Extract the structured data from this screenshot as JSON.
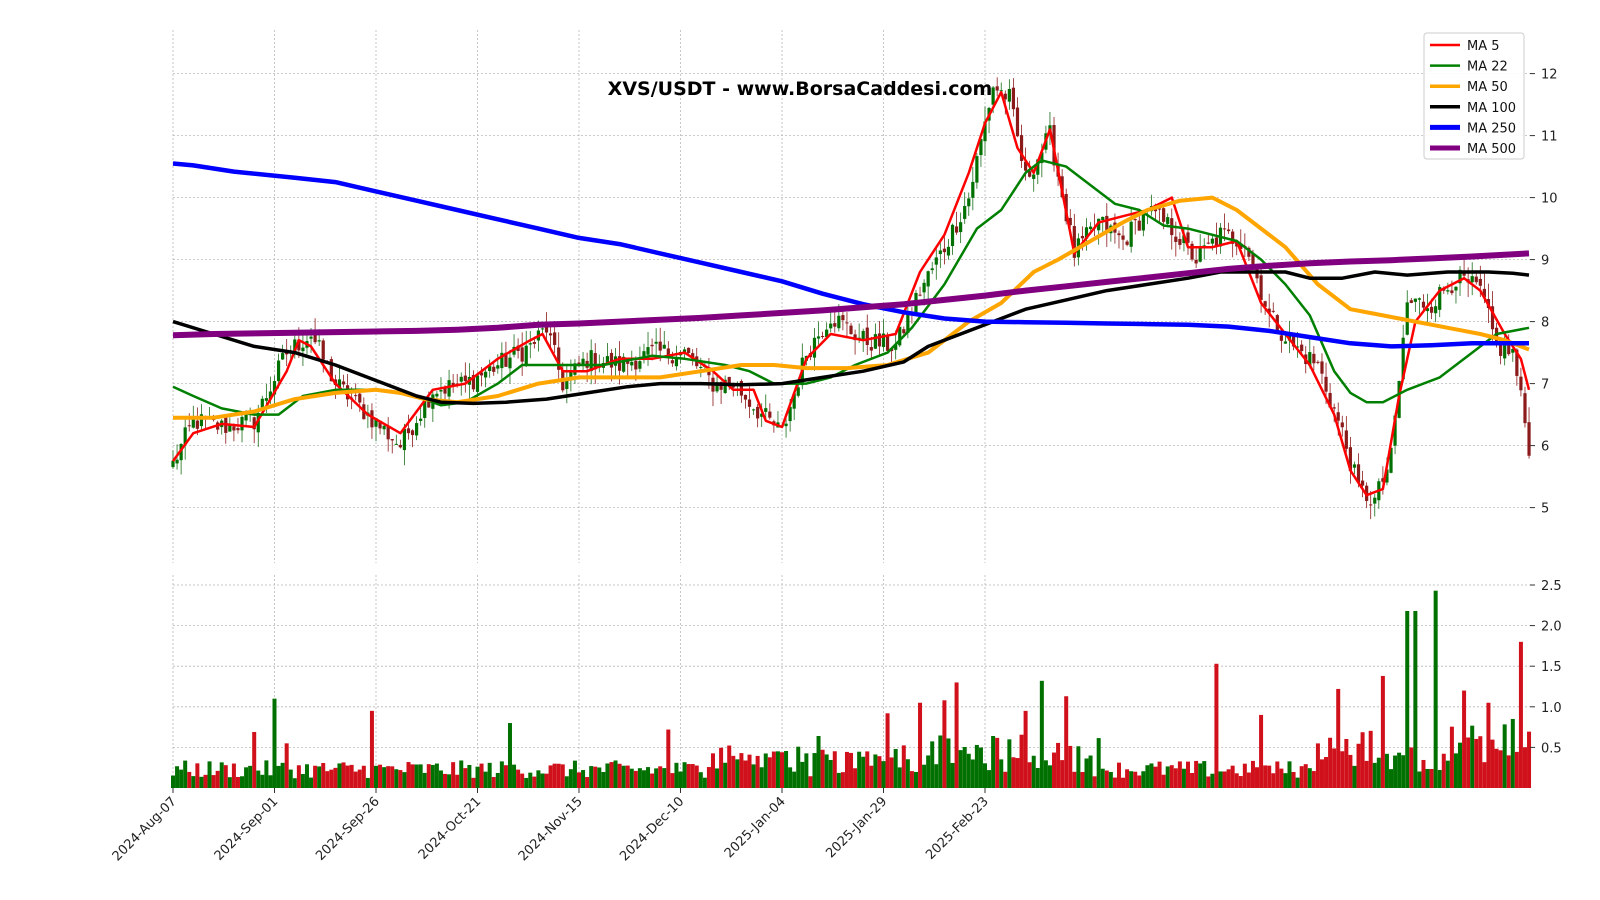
{
  "chart_data": {
    "type": "candlestick",
    "title": "XVS/USDT - www.BorsaCaddesi.com",
    "x_tick_labels": [
      "2024-Aug-07",
      "2024-Sep-01",
      "2024-Sep-26",
      "2024-Oct-21",
      "2024-Nov-15",
      "2024-Dec-10",
      "2025-Jan-04",
      "2025-Jan-29",
      "2025-Feb-23"
    ],
    "price_axis": {
      "ylim": [
        4.2,
        12.8
      ],
      "ticks": [
        5,
        6,
        7,
        8,
        9,
        10,
        11,
        12
      ],
      "grid": true
    },
    "volume_axis": {
      "ylim": [
        0,
        2.6
      ],
      "ticks": [
        "0.5",
        "1.0",
        "1.5",
        "2.0",
        "2.5"
      ],
      "grid": true
    },
    "legend": {
      "placement": "top-right",
      "entries": [
        {
          "label": "MA 5",
          "color": "#ff0000"
        },
        {
          "label": "MA 22",
          "color": "#008000"
        },
        {
          "label": "MA 50",
          "color": "#ffa500"
        },
        {
          "label": "MA 100",
          "color": "#000000"
        },
        {
          "label": "MA 250",
          "color": "#0000ff"
        },
        {
          "label": "MA 500",
          "color": "#800080"
        }
      ]
    },
    "colors": {
      "up": "#007000",
      "down": "#d0101a",
      "wick_up": "#1a6e1a",
      "wick_down": "#8b1a1a"
    },
    "close_anchors": [
      [
        0,
        5.7
      ],
      [
        5,
        6.4
      ],
      [
        12,
        6.3
      ],
      [
        20,
        6.4
      ],
      [
        28,
        7.5
      ],
      [
        34,
        7.8
      ],
      [
        40,
        7.0
      ],
      [
        48,
        6.5
      ],
      [
        56,
        6.0
      ],
      [
        64,
        6.9
      ],
      [
        72,
        7.0
      ],
      [
        80,
        7.3
      ],
      [
        88,
        7.6
      ],
      [
        92,
        7.9
      ],
      [
        96,
        7.0
      ],
      [
        102,
        7.4
      ],
      [
        110,
        7.3
      ],
      [
        118,
        7.5
      ],
      [
        126,
        7.5
      ],
      [
        133,
        7.0
      ],
      [
        138,
        7.0
      ],
      [
        145,
        6.5
      ],
      [
        150,
        6.2
      ],
      [
        156,
        7.5
      ],
      [
        162,
        8.1
      ],
      [
        170,
        7.7
      ],
      [
        178,
        7.6
      ],
      [
        184,
        8.5
      ],
      [
        190,
        9.2
      ],
      [
        196,
        10.0
      ],
      [
        202,
        11.8
      ],
      [
        206,
        11.6
      ],
      [
        210,
        10.3
      ],
      [
        216,
        11.0
      ],
      [
        222,
        9.1
      ],
      [
        228,
        9.6
      ],
      [
        234,
        9.3
      ],
      [
        240,
        9.8
      ],
      [
        246,
        9.5
      ],
      [
        252,
        9.0
      ],
      [
        258,
        9.4
      ],
      [
        264,
        9.3
      ],
      [
        270,
        8.1
      ],
      [
        276,
        7.6
      ],
      [
        282,
        7.3
      ],
      [
        288,
        6.2
      ],
      [
        292,
        5.3
      ],
      [
        296,
        5.1
      ],
      [
        300,
        5.8
      ],
      [
        304,
        8.3
      ],
      [
        310,
        8.3
      ],
      [
        316,
        8.7
      ],
      [
        322,
        8.5
      ],
      [
        326,
        7.6
      ],
      [
        330,
        7.5
      ],
      [
        334,
        6.0
      ]
    ],
    "ma_lines": {
      "MA 5": [
        [
          0,
          5.75
        ],
        [
          5,
          6.2
        ],
        [
          12,
          6.35
        ],
        [
          20,
          6.3
        ],
        [
          28,
          7.2
        ],
        [
          31,
          7.7
        ],
        [
          34,
          7.6
        ],
        [
          40,
          7.0
        ],
        [
          48,
          6.5
        ],
        [
          56,
          6.2
        ],
        [
          64,
          6.9
        ],
        [
          72,
          7.0
        ],
        [
          80,
          7.4
        ],
        [
          88,
          7.7
        ],
        [
          91,
          7.8
        ],
        [
          96,
          7.2
        ],
        [
          102,
          7.2
        ],
        [
          110,
          7.4
        ],
        [
          118,
          7.4
        ],
        [
          126,
          7.5
        ],
        [
          133,
          7.2
        ],
        [
          138,
          6.9
        ],
        [
          143,
          6.9
        ],
        [
          146,
          6.4
        ],
        [
          150,
          6.3
        ],
        [
          156,
          7.4
        ],
        [
          162,
          7.8
        ],
        [
          170,
          7.7
        ],
        [
          178,
          7.8
        ],
        [
          184,
          8.8
        ],
        [
          190,
          9.4
        ],
        [
          196,
          10.4
        ],
        [
          200,
          11.2
        ],
        [
          204,
          11.7
        ],
        [
          208,
          10.8
        ],
        [
          212,
          10.4
        ],
        [
          216,
          11.1
        ],
        [
          222,
          9.1
        ],
        [
          228,
          9.6
        ],
        [
          234,
          9.7
        ],
        [
          240,
          9.8
        ],
        [
          246,
          10.0
        ],
        [
          250,
          9.2
        ],
        [
          256,
          9.2
        ],
        [
          262,
          9.3
        ],
        [
          268,
          8.3
        ],
        [
          274,
          7.8
        ],
        [
          280,
          7.3
        ],
        [
          286,
          6.5
        ],
        [
          290,
          5.6
        ],
        [
          294,
          5.2
        ],
        [
          298,
          5.3
        ],
        [
          302,
          6.8
        ],
        [
          306,
          8.0
        ],
        [
          312,
          8.5
        ],
        [
          318,
          8.7
        ],
        [
          322,
          8.5
        ],
        [
          328,
          7.8
        ],
        [
          332,
          7.4
        ],
        [
          334,
          6.9
        ]
      ],
      "MA 22": [
        [
          0,
          6.95
        ],
        [
          5,
          6.8
        ],
        [
          12,
          6.6
        ],
        [
          20,
          6.5
        ],
        [
          26,
          6.5
        ],
        [
          32,
          6.8
        ],
        [
          40,
          6.9
        ],
        [
          50,
          6.9
        ],
        [
          60,
          6.8
        ],
        [
          66,
          6.65
        ],
        [
          72,
          6.7
        ],
        [
          80,
          7.0
        ],
        [
          86,
          7.3
        ],
        [
          96,
          7.3
        ],
        [
          106,
          7.3
        ],
        [
          118,
          7.45
        ],
        [
          126,
          7.4
        ],
        [
          136,
          7.3
        ],
        [
          142,
          7.2
        ],
        [
          148,
          7.0
        ],
        [
          156,
          7.0
        ],
        [
          162,
          7.1
        ],
        [
          168,
          7.3
        ],
        [
          176,
          7.5
        ],
        [
          182,
          7.9
        ],
        [
          190,
          8.6
        ],
        [
          198,
          9.5
        ],
        [
          204,
          9.8
        ],
        [
          210,
          10.4
        ],
        [
          214,
          10.6
        ],
        [
          220,
          10.5
        ],
        [
          226,
          10.2
        ],
        [
          232,
          9.9
        ],
        [
          238,
          9.8
        ],
        [
          244,
          9.55
        ],
        [
          250,
          9.5
        ],
        [
          256,
          9.4
        ],
        [
          262,
          9.3
        ],
        [
          268,
          9.0
        ],
        [
          274,
          8.6
        ],
        [
          280,
          8.1
        ],
        [
          286,
          7.2
        ],
        [
          290,
          6.85
        ],
        [
          294,
          6.7
        ],
        [
          298,
          6.7
        ],
        [
          304,
          6.9
        ],
        [
          312,
          7.1
        ],
        [
          320,
          7.5
        ],
        [
          326,
          7.8
        ],
        [
          334,
          7.9
        ]
      ],
      "MA 50": [
        [
          0,
          6.45
        ],
        [
          10,
          6.45
        ],
        [
          20,
          6.55
        ],
        [
          30,
          6.75
        ],
        [
          40,
          6.85
        ],
        [
          50,
          6.9
        ],
        [
          56,
          6.85
        ],
        [
          62,
          6.75
        ],
        [
          70,
          6.7
        ],
        [
          80,
          6.8
        ],
        [
          90,
          7.0
        ],
        [
          100,
          7.1
        ],
        [
          110,
          7.1
        ],
        [
          120,
          7.1
        ],
        [
          130,
          7.2
        ],
        [
          140,
          7.3
        ],
        [
          148,
          7.3
        ],
        [
          156,
          7.25
        ],
        [
          166,
          7.25
        ],
        [
          176,
          7.3
        ],
        [
          186,
          7.5
        ],
        [
          196,
          8.0
        ],
        [
          204,
          8.3
        ],
        [
          212,
          8.8
        ],
        [
          218,
          9.0
        ],
        [
          226,
          9.3
        ],
        [
          234,
          9.6
        ],
        [
          240,
          9.8
        ],
        [
          248,
          9.95
        ],
        [
          256,
          10.0
        ],
        [
          262,
          9.8
        ],
        [
          268,
          9.5
        ],
        [
          274,
          9.2
        ],
        [
          282,
          8.6
        ],
        [
          290,
          8.2
        ],
        [
          298,
          8.1
        ],
        [
          306,
          8.0
        ],
        [
          314,
          7.9
        ],
        [
          322,
          7.8
        ],
        [
          328,
          7.7
        ],
        [
          334,
          7.55
        ]
      ],
      "MA 100": [
        [
          0,
          8.0
        ],
        [
          10,
          7.8
        ],
        [
          20,
          7.6
        ],
        [
          30,
          7.5
        ],
        [
          40,
          7.3
        ],
        [
          50,
          7.05
        ],
        [
          60,
          6.8
        ],
        [
          66,
          6.7
        ],
        [
          74,
          6.68
        ],
        [
          82,
          6.7
        ],
        [
          92,
          6.75
        ],
        [
          102,
          6.85
        ],
        [
          112,
          6.95
        ],
        [
          120,
          7.0
        ],
        [
          130,
          7.0
        ],
        [
          140,
          6.98
        ],
        [
          150,
          7.0
        ],
        [
          160,
          7.1
        ],
        [
          170,
          7.2
        ],
        [
          180,
          7.35
        ],
        [
          186,
          7.6
        ],
        [
          194,
          7.8
        ],
        [
          202,
          8.0
        ],
        [
          210,
          8.2
        ],
        [
          220,
          8.35
        ],
        [
          230,
          8.5
        ],
        [
          240,
          8.6
        ],
        [
          250,
          8.7
        ],
        [
          258,
          8.8
        ],
        [
          266,
          8.8
        ],
        [
          274,
          8.8
        ],
        [
          280,
          8.7
        ],
        [
          288,
          8.7
        ],
        [
          296,
          8.8
        ],
        [
          304,
          8.75
        ],
        [
          314,
          8.8
        ],
        [
          324,
          8.8
        ],
        [
          330,
          8.78
        ],
        [
          334,
          8.75
        ]
      ],
      "MA 250": [
        [
          0,
          10.55
        ],
        [
          5,
          10.52
        ],
        [
          15,
          10.42
        ],
        [
          30,
          10.32
        ],
        [
          40,
          10.25
        ],
        [
          50,
          10.1
        ],
        [
          60,
          9.95
        ],
        [
          70,
          9.8
        ],
        [
          80,
          9.65
        ],
        [
          90,
          9.5
        ],
        [
          100,
          9.35
        ],
        [
          110,
          9.25
        ],
        [
          120,
          9.1
        ],
        [
          130,
          8.95
        ],
        [
          140,
          8.8
        ],
        [
          150,
          8.65
        ],
        [
          160,
          8.45
        ],
        [
          170,
          8.28
        ],
        [
          180,
          8.15
        ],
        [
          190,
          8.05
        ],
        [
          200,
          8.0
        ],
        [
          210,
          7.99
        ],
        [
          220,
          7.98
        ],
        [
          230,
          7.97
        ],
        [
          240,
          7.96
        ],
        [
          250,
          7.95
        ],
        [
          260,
          7.92
        ],
        [
          270,
          7.85
        ],
        [
          280,
          7.75
        ],
        [
          290,
          7.65
        ],
        [
          300,
          7.6
        ],
        [
          310,
          7.62
        ],
        [
          320,
          7.65
        ],
        [
          334,
          7.65
        ]
      ],
      "MA 500": [
        [
          0,
          7.78
        ],
        [
          10,
          7.8
        ],
        [
          20,
          7.81
        ],
        [
          30,
          7.82
        ],
        [
          40,
          7.83
        ],
        [
          50,
          7.84
        ],
        [
          60,
          7.85
        ],
        [
          70,
          7.87
        ],
        [
          80,
          7.9
        ],
        [
          90,
          7.95
        ],
        [
          100,
          7.97
        ],
        [
          110,
          8.0
        ],
        [
          120,
          8.03
        ],
        [
          130,
          8.06
        ],
        [
          140,
          8.1
        ],
        [
          150,
          8.14
        ],
        [
          160,
          8.18
        ],
        [
          170,
          8.23
        ],
        [
          180,
          8.28
        ],
        [
          190,
          8.35
        ],
        [
          200,
          8.42
        ],
        [
          210,
          8.5
        ],
        [
          220,
          8.57
        ],
        [
          230,
          8.64
        ],
        [
          240,
          8.71
        ],
        [
          250,
          8.78
        ],
        [
          260,
          8.85
        ],
        [
          270,
          8.9
        ],
        [
          280,
          8.94
        ],
        [
          290,
          8.97
        ],
        [
          300,
          8.99
        ],
        [
          310,
          9.02
        ],
        [
          320,
          9.05
        ],
        [
          334,
          9.1
        ]
      ]
    },
    "volume_spikes": [
      [
        20,
        0.69
      ],
      [
        25,
        1.1
      ],
      [
        28,
        0.55
      ],
      [
        49,
        0.95
      ],
      [
        83,
        0.8
      ],
      [
        122,
        0.72
      ],
      [
        176,
        0.92
      ],
      [
        184,
        1.05
      ],
      [
        190,
        1.08
      ],
      [
        193,
        1.3
      ],
      [
        210,
        0.95
      ],
      [
        214,
        1.32
      ],
      [
        220,
        1.13
      ],
      [
        257,
        1.53
      ],
      [
        268,
        0.9
      ],
      [
        287,
        1.22
      ],
      [
        298,
        1.38
      ],
      [
        304,
        2.18
      ],
      [
        306,
        2.18
      ],
      [
        311,
        2.43
      ],
      [
        318,
        1.2
      ],
      [
        324,
        1.05
      ],
      [
        330,
        0.85
      ],
      [
        332,
        1.8
      ]
    ]
  }
}
